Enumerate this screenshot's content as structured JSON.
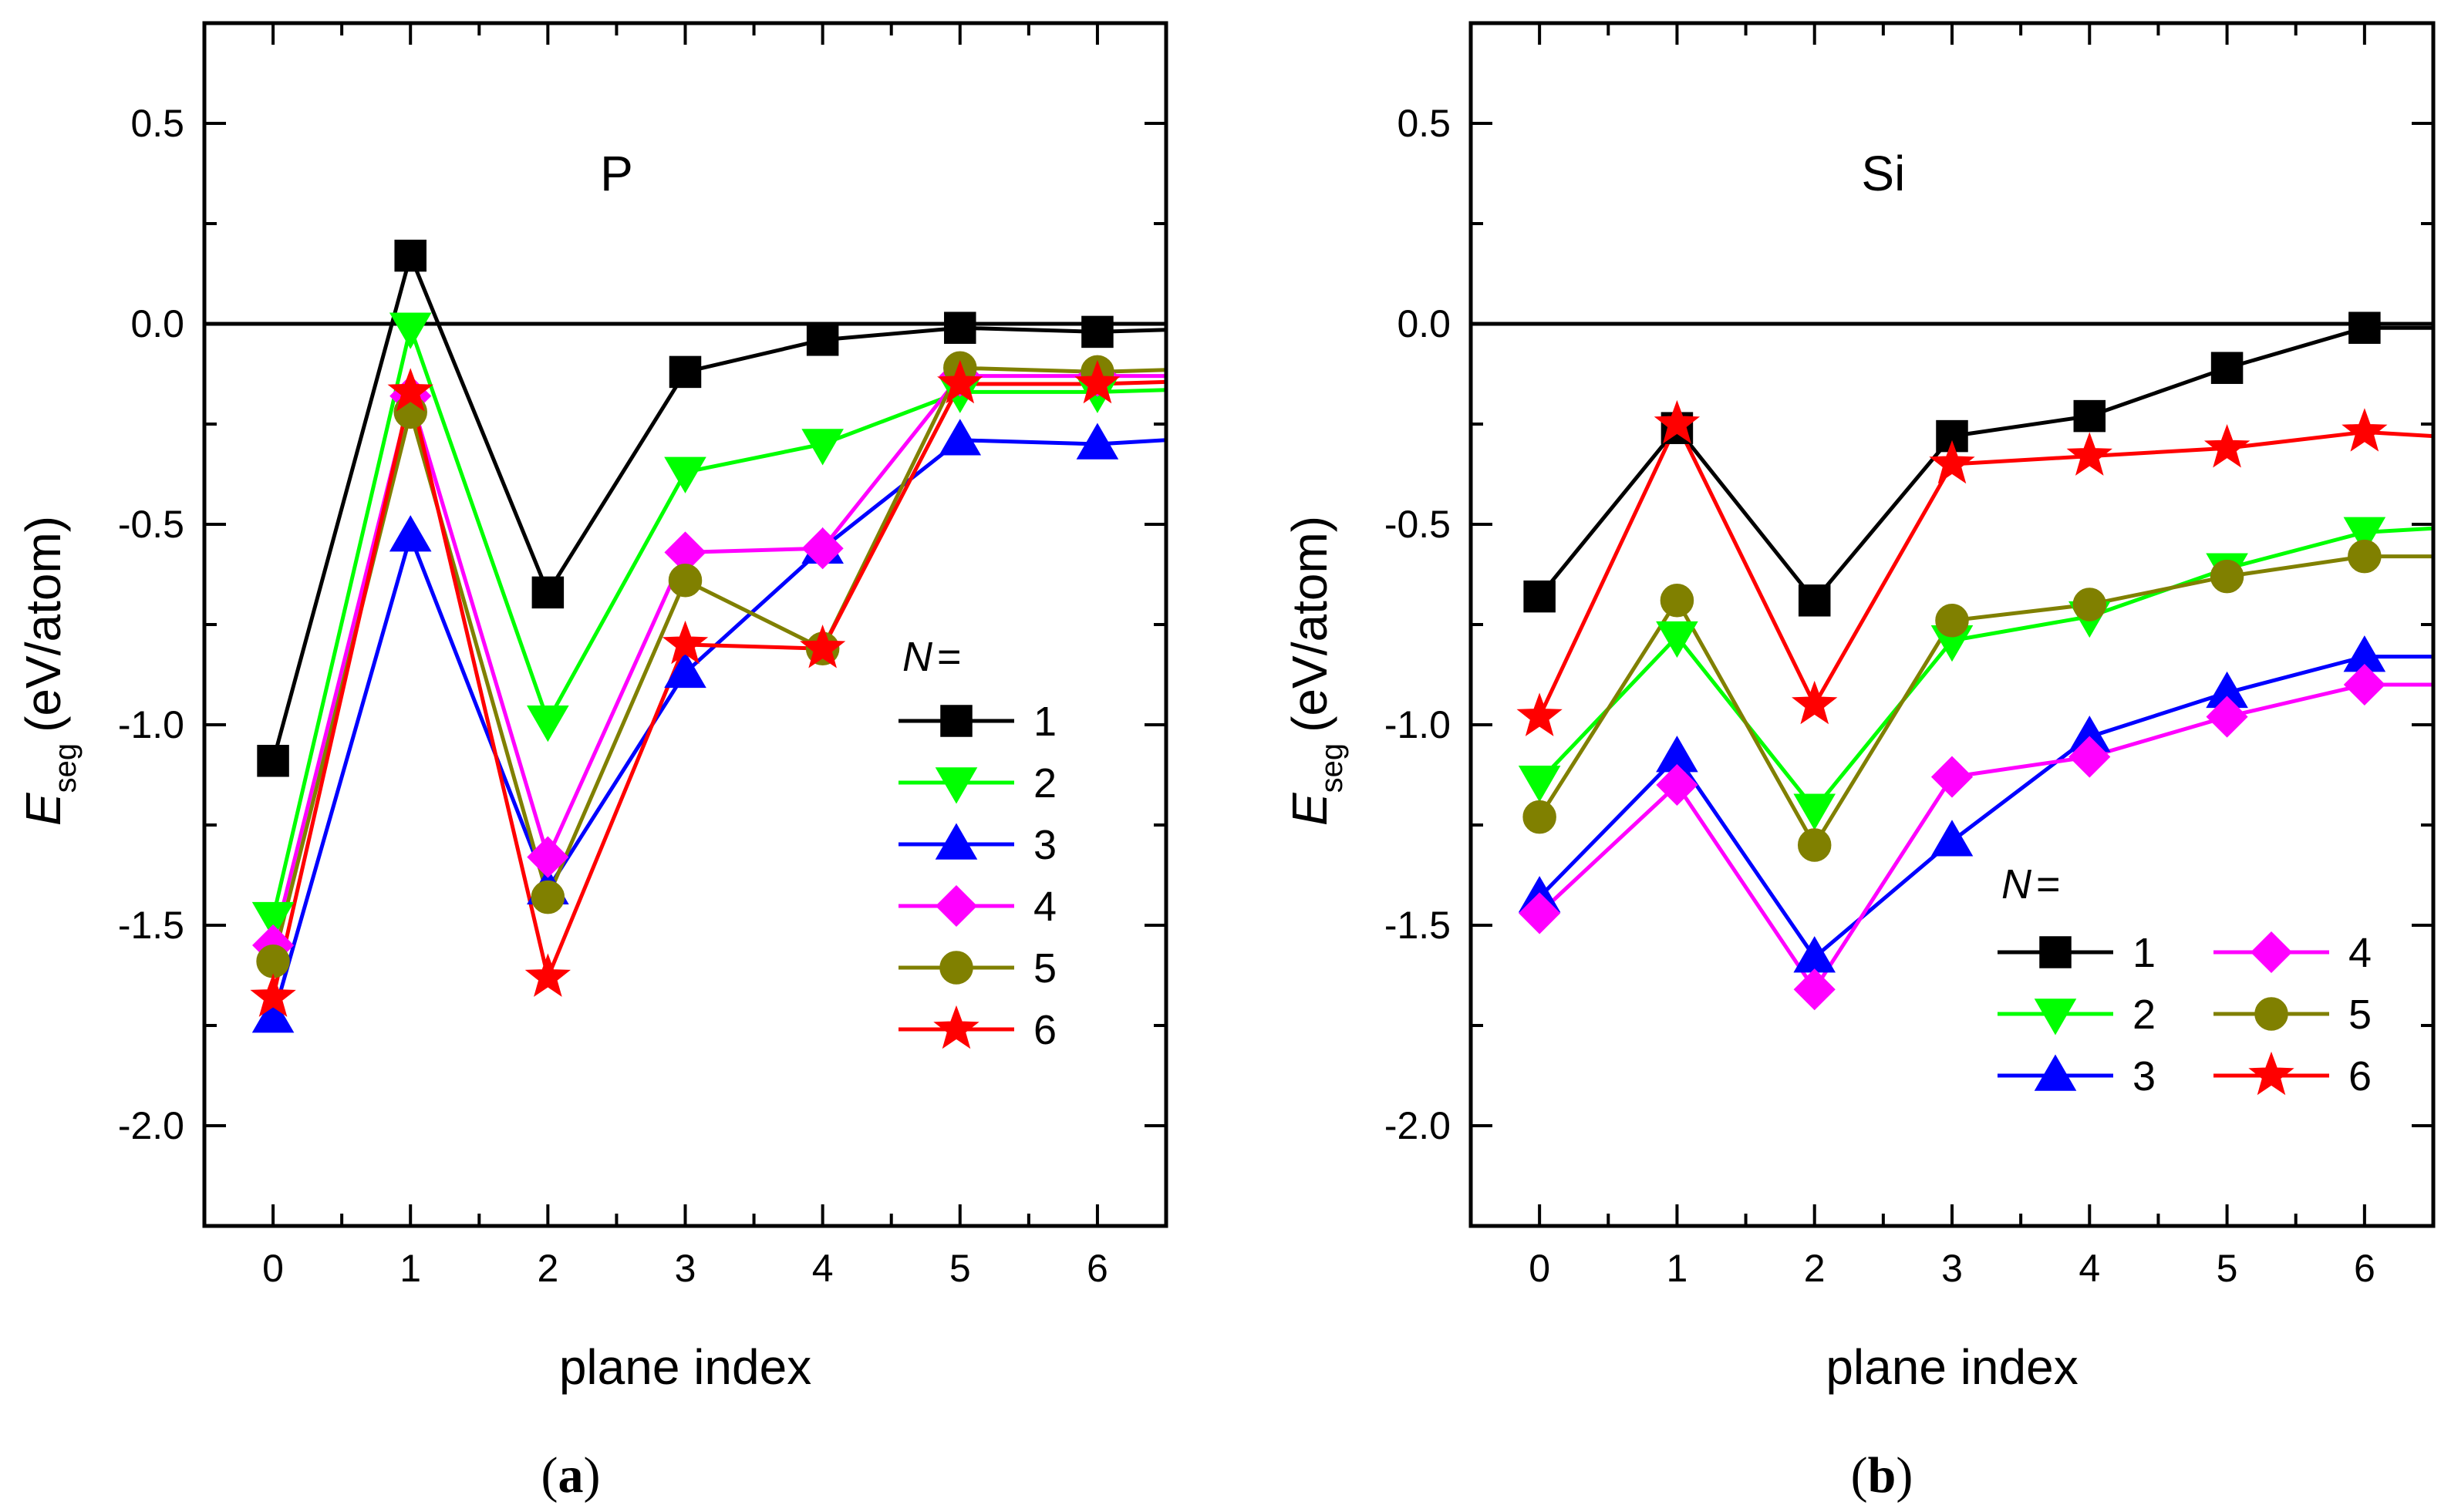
{
  "chart_data": [
    {
      "type": "line",
      "panel": "a",
      "caption": "(a)",
      "title": "P",
      "xlabel": "plane index",
      "ylabel": {
        "main": "E",
        "sub": "seg",
        "unit": "(eV/atom)"
      },
      "xlim": [
        -0.5,
        6.5
      ],
      "ylim": [
        -2.25,
        0.75
      ],
      "xticks": [
        0,
        1,
        2,
        3,
        4,
        5,
        6
      ],
      "xtick_labels": [
        "0",
        "1",
        "2",
        "3",
        "4",
        "5",
        "6"
      ],
      "yticks": [
        -2.0,
        -1.5,
        -1.0,
        -0.5,
        0.0,
        0.5
      ],
      "ytick_labels": [
        "-2.0",
        "-1.5",
        "-1.0",
        "-0.5",
        "0.0",
        "0.5"
      ],
      "zero_line": true,
      "x": [
        0,
        1,
        2,
        3,
        4,
        5,
        6,
        6.5
      ],
      "legend": {
        "title": "N =",
        "layout": "one-column",
        "placement": "right"
      },
      "series": [
        {
          "name": "1",
          "color": "#000000",
          "marker": "square",
          "values": [
            -1.09,
            0.17,
            -0.67,
            -0.12,
            -0.04,
            -0.01,
            -0.02,
            -0.015
          ]
        },
        {
          "name": "2",
          "color": "#00ff00",
          "marker": "triangle-down",
          "values": [
            -1.48,
            -0.01,
            -0.99,
            -0.37,
            -0.3,
            -0.17,
            -0.17,
            -0.165
          ]
        },
        {
          "name": "3",
          "color": "#0000ff",
          "marker": "triangle-up",
          "values": [
            -1.73,
            -0.53,
            -1.41,
            -0.87,
            -0.56,
            -0.29,
            -0.3,
            -0.29
          ]
        },
        {
          "name": "4",
          "color": "#ff00ff",
          "marker": "diamond",
          "values": [
            -1.55,
            -0.18,
            -1.33,
            -0.57,
            -0.56,
            -0.13,
            -0.13,
            -0.13
          ]
        },
        {
          "name": "5",
          "color": "#808000",
          "marker": "circle",
          "values": [
            -1.59,
            -0.22,
            -1.43,
            -0.64,
            -0.81,
            -0.11,
            -0.12,
            -0.115
          ]
        },
        {
          "name": "6",
          "color": "#ff0000",
          "marker": "star",
          "values": [
            -1.68,
            -0.17,
            -1.63,
            -0.8,
            -0.81,
            -0.15,
            -0.15,
            -0.145
          ]
        }
      ]
    },
    {
      "type": "line",
      "panel": "b",
      "caption": "(b)",
      "title": "Si",
      "xlabel": "plane index",
      "ylabel": {
        "main": "E",
        "sub": "seg",
        "unit": "(eV/atom)"
      },
      "xlim": [
        -0.5,
        6.5
      ],
      "ylim": [
        -2.25,
        0.75
      ],
      "xticks": [
        0,
        1,
        2,
        3,
        4,
        5,
        6
      ],
      "xtick_labels": [
        "0",
        "1",
        "2",
        "3",
        "4",
        "5",
        "6"
      ],
      "yticks": [
        -2.0,
        -1.5,
        -1.0,
        -0.5,
        0.0,
        0.5
      ],
      "ytick_labels": [
        "-2.0",
        "-1.5",
        "-1.0",
        "-0.5",
        "0.0",
        "0.5"
      ],
      "zero_line": true,
      "x": [
        0,
        1,
        2,
        3,
        4,
        5,
        6,
        6.5
      ],
      "legend": {
        "title": "N =",
        "layout": "two-column",
        "placement": "bottom-right"
      },
      "series": [
        {
          "name": "1",
          "color": "#000000",
          "marker": "square",
          "values": [
            -0.68,
            -0.26,
            -0.69,
            -0.28,
            -0.23,
            -0.11,
            -0.01,
            -0.01
          ]
        },
        {
          "name": "2",
          "color": "#00ff00",
          "marker": "triangle-down",
          "values": [
            -1.14,
            -0.78,
            -1.21,
            -0.79,
            -0.73,
            -0.61,
            -0.52,
            -0.51
          ]
        },
        {
          "name": "3",
          "color": "#0000ff",
          "marker": "triangle-up",
          "values": [
            -1.43,
            -1.08,
            -1.58,
            -1.29,
            -1.03,
            -0.92,
            -0.83,
            -0.83
          ]
        },
        {
          "name": "4",
          "color": "#ff00ff",
          "marker": "diamond",
          "values": [
            -1.47,
            -1.15,
            -1.66,
            -1.13,
            -1.08,
            -0.98,
            -0.9,
            -0.9
          ]
        },
        {
          "name": "5",
          "color": "#808000",
          "marker": "circle",
          "values": [
            -1.23,
            -0.69,
            -1.3,
            -0.74,
            -0.7,
            -0.63,
            -0.58,
            -0.58
          ]
        },
        {
          "name": "6",
          "color": "#ff0000",
          "marker": "star",
          "values": [
            -0.98,
            -0.25,
            -0.95,
            -0.35,
            -0.33,
            -0.31,
            -0.27,
            -0.28
          ]
        }
      ]
    }
  ]
}
